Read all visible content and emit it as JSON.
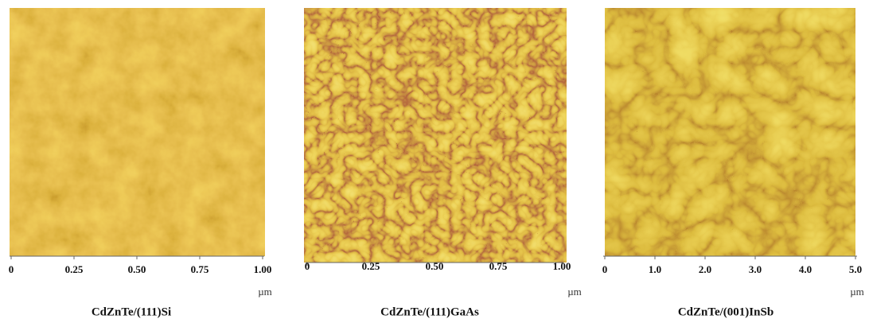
{
  "panels": [
    {
      "caption": "CdZnTe/(111)Si",
      "ticks": [
        "0",
        "0.25",
        "0.50",
        "0.75",
        "1.00"
      ],
      "unit": "µm"
    },
    {
      "caption": "CdZnTe/(111)GaAs",
      "ticks": [
        "0",
        "0.25",
        "0.50",
        "0.75",
        "1.00"
      ],
      "unit": "µm"
    },
    {
      "caption": "CdZnTe/(001)InSb",
      "ticks": [
        "0",
        "1.0",
        "2.0",
        "3.0",
        "4.0",
        "5.0"
      ],
      "unit": "µm"
    }
  ]
}
